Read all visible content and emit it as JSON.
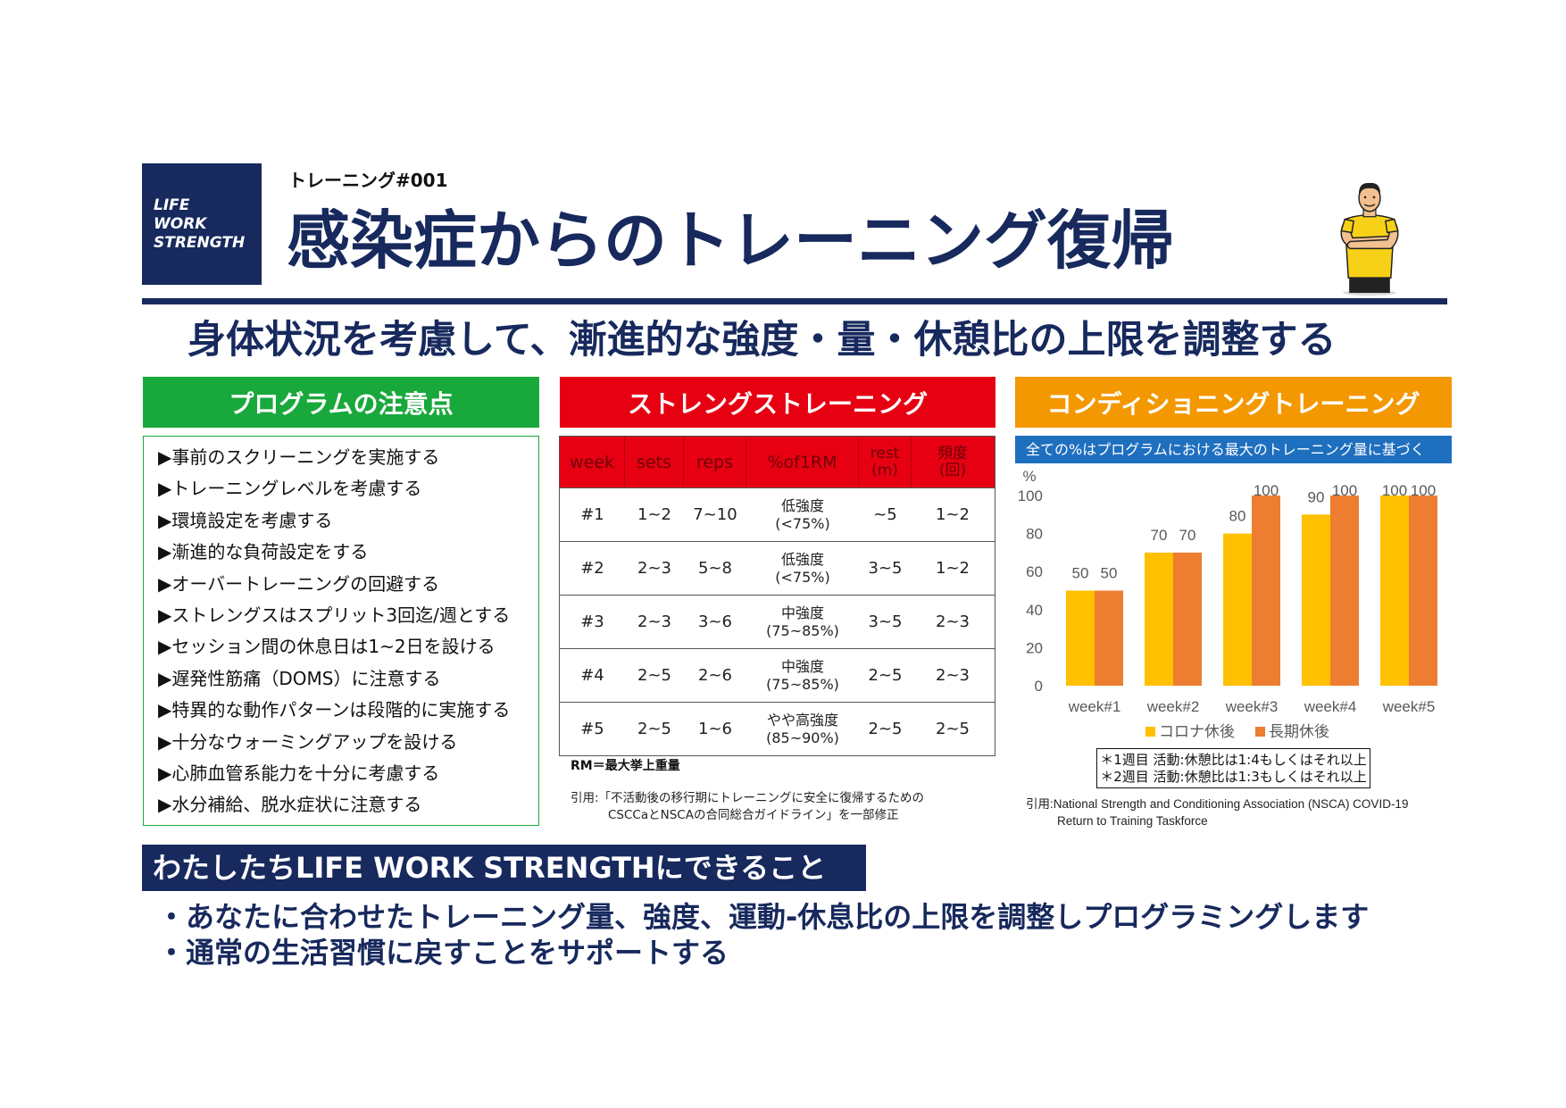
{
  "logo": {
    "lines": [
      "LIFE",
      "WORK",
      "STRENGTH"
    ]
  },
  "header": {
    "series_label": "トレーニング#001",
    "title": "感染症からのトレーニング復帰",
    "illustration_icon": "trainer-illustration"
  },
  "subtitle": "身体状況を考慮して、漸進的な強度・量・休憩比の上限を調整する",
  "sections": {
    "program": {
      "title": "プログラムの注意点",
      "items": [
        "▶事前のスクリーニングを実施する",
        "▶トレーニングレベルを考慮する",
        "▶環境設定を考慮する",
        "▶漸進的な負荷設定をする",
        "▶オーバートレーニングの回避する",
        "▶ストレングスはスプリット3回迄/週とする",
        "▶セッション間の休息日は1~2日を設ける",
        "▶遅発性筋痛（DOMS）に注意する",
        "▶特異的な動作パターンは段階的に実施する",
        "▶十分なウォーミングアップを設ける",
        "▶心肺血管系能力を十分に考慮する",
        "▶水分補給、脱水症状に注意する"
      ]
    },
    "strength": {
      "title": "ストレングストレーニング",
      "table": {
        "headers": [
          "week",
          "sets",
          "reps",
          "%of1RM",
          "rest\n(m)",
          "頻度\n(回)"
        ],
        "rows": [
          [
            "#1",
            "1~2",
            "7~10",
            "低強度\n(<75%)",
            "~5",
            "1~2"
          ],
          [
            "#2",
            "2~3",
            "5~8",
            "低強度\n(<75%)",
            "3~5",
            "1~2"
          ],
          [
            "#3",
            "2~3",
            "3~6",
            "中強度\n(75~85%)",
            "3~5",
            "2~3"
          ],
          [
            "#4",
            "2~5",
            "2~6",
            "中強度\n(75~85%)",
            "2~5",
            "2~3"
          ],
          [
            "#5",
            "2~5",
            "1~6",
            "やや高強度\n(85~90%)",
            "2~5",
            "2~5"
          ]
        ]
      },
      "note": "RM＝最大挙上重量",
      "citation": [
        "引用:「不活動後の移行期にトレーニングに安全に復帰するための",
        "CSCCaとNSCAの合同総合ガイドライン」を一部修正"
      ]
    },
    "conditioning": {
      "title": "コンディショニングトレーニング",
      "banner": "全ての%はプログラムにおける最大のトレーニング量に基づく",
      "notes": [
        "＊1週目 活動:休憩比は1:4もしくはそれ以上",
        "＊2週目 活動:休憩比は1:3もしくはそれ以上"
      ],
      "citation": [
        "引用:National Strength and Conditioning Association (NSCA) COVID-19",
        "Return to Training Taskforce"
      ]
    }
  },
  "chart_data": {
    "type": "bar",
    "categories": [
      "week#1",
      "week#2",
      "week#3",
      "week#4",
      "week#5"
    ],
    "series": [
      {
        "name": "コロナ休後",
        "values": [
          50,
          70,
          80,
          90,
          100
        ],
        "color": "#ffc000"
      },
      {
        "name": "長期休後",
        "values": [
          50,
          70,
          100,
          100,
          100
        ],
        "color": "#ed7d31"
      }
    ],
    "title": "",
    "xlabel": "",
    "ylabel": "%",
    "ylim": [
      0,
      100
    ],
    "yticks": [
      0,
      20,
      40,
      60,
      80,
      100
    ],
    "grid": false,
    "legend": "bottom",
    "data_labels": true
  },
  "footer": {
    "banner": "わたしたちLIFE WORK STRENGTHにできること",
    "bullets": [
      "・あなたに合わせたトレーニング量、強度、運動-休息比の上限を調整しプログラミングします",
      "・通常の生活習慣に戻すことをサポートする"
    ]
  },
  "colors": {
    "navy": "#17295d",
    "program_green": "#19a83b",
    "strength_red": "#e60012",
    "conditioning_orange": "#f39800",
    "banner_blue": "#1f6fbf"
  }
}
